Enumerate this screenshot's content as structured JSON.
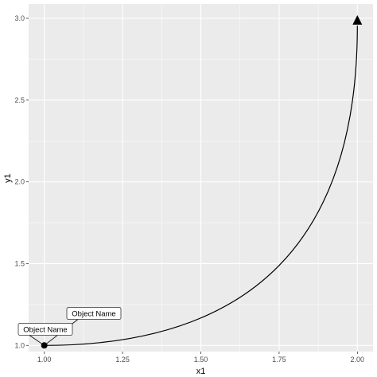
{
  "chart_data": {
    "type": "line",
    "title": "",
    "xlabel": "x1",
    "ylabel": "y1",
    "xlim": [
      0.95,
      2.05
    ],
    "ylim": [
      0.9625,
      3.0875
    ],
    "x_ticks": [
      1.0,
      1.25,
      1.5,
      1.75,
      2.0
    ],
    "x_tick_labels": [
      "1.00",
      "1.25",
      "1.50",
      "1.75",
      "2.00"
    ],
    "y_ticks": [
      1.0,
      1.5,
      2.0,
      2.5,
      3.0
    ],
    "y_tick_labels": [
      "1.0",
      "1.5",
      "2.0",
      "2.5",
      "3.0"
    ],
    "grid": true,
    "background": "#ebebeb",
    "grid_color": "#ffffff",
    "line_color": "#000000",
    "curve": {
      "start": {
        "x": 1.0,
        "y": 1.0
      },
      "end": {
        "x": 2.0,
        "y": 3.0
      },
      "control": {
        "x": 2.0,
        "y": 1.0
      },
      "shape": "curve bending toward lower-right"
    },
    "start_marker": {
      "x": 1.0,
      "y": 1.0,
      "shape": "filled-circle"
    },
    "end_marker": {
      "shape": "filled-triangle-arrowhead"
    },
    "annotations": [
      {
        "text": "Object Name",
        "x": 1.0,
        "y": 1.0
      },
      {
        "text": "Object Name",
        "x": 1.0,
        "y": 1.0
      }
    ]
  }
}
